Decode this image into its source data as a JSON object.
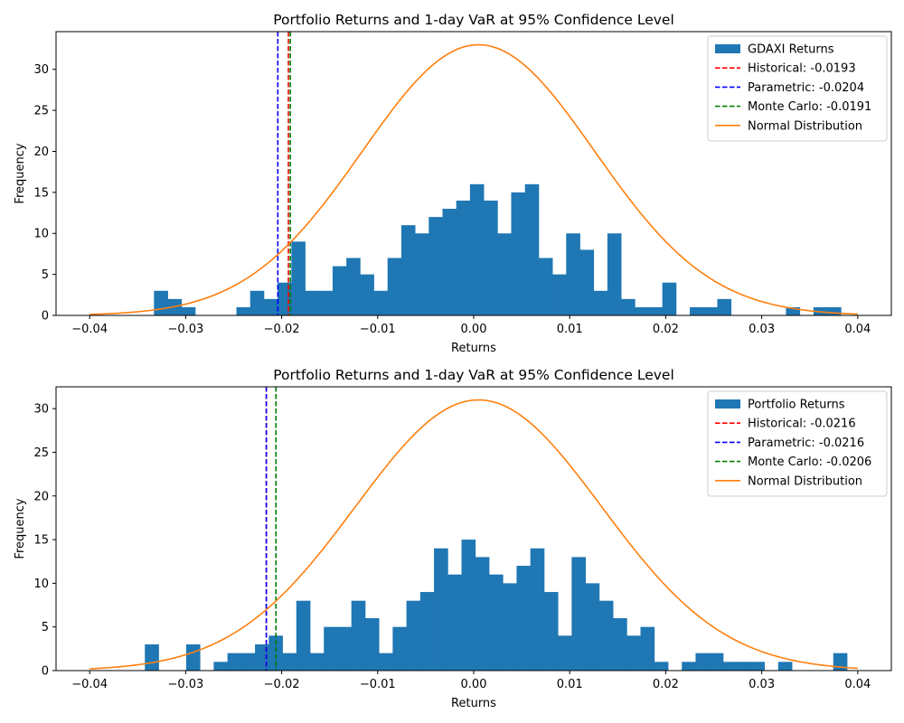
{
  "chart_data": [
    {
      "type": "histogram",
      "title": "Portfolio Returns and 1-day VaR at 95% Confidence Level",
      "xlabel": "Returns",
      "ylabel": "Frequency",
      "xlim": [
        -0.0435,
        0.0435
      ],
      "ylim": [
        0,
        34.6
      ],
      "x_ticks": [
        -0.04,
        -0.03,
        -0.02,
        -0.01,
        0.0,
        0.01,
        0.02,
        0.03,
        0.04
      ],
      "x_tick_labels": [
        "−0.04",
        "−0.03",
        "−0.02",
        "−0.01",
        "0.00",
        "0.01",
        "0.02",
        "0.03",
        "0.04"
      ],
      "y_ticks": [
        0,
        5,
        10,
        15,
        20,
        25,
        30
      ],
      "y_tick_labels": [
        "0",
        "5",
        "10",
        "15",
        "20",
        "25",
        "30"
      ],
      "grid": false,
      "legend_position": "upper right",
      "histogram": {
        "name": "GDAXI Returns",
        "color": "#1f77b4",
        "bin_start": -0.0333,
        "bin_width": 0.001431,
        "counts": [
          3,
          2,
          1,
          0,
          0,
          0,
          1,
          3,
          2,
          4,
          9,
          3,
          3,
          6,
          7,
          5,
          3,
          7,
          11,
          10,
          12,
          13,
          14,
          16,
          14,
          10,
          15,
          16,
          7,
          5,
          10,
          8,
          3,
          10,
          2,
          1,
          1,
          4,
          0,
          1,
          1,
          2,
          0,
          0,
          0,
          0,
          1,
          0,
          1,
          1
        ]
      },
      "var_lines": [
        {
          "name": "Historical: -0.0193",
          "x": -0.0193,
          "color": "#ff0000"
        },
        {
          "name": "Parametric: -0.0204",
          "x": -0.0204,
          "color": "#0000ff"
        },
        {
          "name": "Monte Carlo: -0.0191",
          "x": -0.0191,
          "color": "#008000"
        }
      ],
      "normal_curve": {
        "name": "Normal Distribution",
        "color": "#ff7f0e",
        "mean": 0.0005,
        "peak": 33.0,
        "sd": 0.0121,
        "x_range": [
          -0.04,
          0.04
        ]
      }
    },
    {
      "type": "histogram",
      "title": "Portfolio Returns and 1-day VaR at 95% Confidence Level",
      "xlabel": "Returns",
      "ylabel": "Frequency",
      "xlim": [
        -0.0435,
        0.0435
      ],
      "ylim": [
        0,
        32.5
      ],
      "x_ticks": [
        -0.04,
        -0.03,
        -0.02,
        -0.01,
        0.0,
        0.01,
        0.02,
        0.03,
        0.04
      ],
      "x_tick_labels": [
        "−0.04",
        "−0.03",
        "−0.02",
        "−0.01",
        "0.00",
        "0.01",
        "0.02",
        "0.03",
        "0.04"
      ],
      "y_ticks": [
        0,
        5,
        10,
        15,
        20,
        25,
        30
      ],
      "y_tick_labels": [
        "0",
        "5",
        "10",
        "15",
        "20",
        "25",
        "30"
      ],
      "grid": false,
      "legend_position": "upper right",
      "histogram": {
        "name": "Portfolio Returns",
        "color": "#1f77b4",
        "bin_start": -0.03425,
        "bin_width": 0.001434,
        "counts": [
          3,
          0,
          0,
          3,
          0,
          1,
          2,
          2,
          3,
          4,
          2,
          8,
          2,
          5,
          5,
          8,
          6,
          2,
          5,
          8,
          9,
          14,
          11,
          15,
          13,
          11,
          10,
          12,
          14,
          9,
          4,
          13,
          10,
          8,
          6,
          4,
          5,
          1,
          0,
          1,
          2,
          2,
          1,
          1,
          1,
          0,
          1,
          0,
          0,
          0,
          2
        ]
      },
      "var_lines": [
        {
          "name": "Historical: -0.0216",
          "x": -0.0216,
          "color": "#ff0000"
        },
        {
          "name": "Parametric: -0.0216",
          "x": -0.0216,
          "color": "#0000ff"
        },
        {
          "name": "Monte Carlo: -0.0206",
          "x": -0.0206,
          "color": "#008000"
        }
      ],
      "normal_curve": {
        "name": "Normal Distribution",
        "color": "#ff7f0e",
        "mean": 0.0005,
        "peak": 31.0,
        "sd": 0.0128,
        "x_range": [
          -0.04,
          0.04
        ]
      }
    }
  ]
}
